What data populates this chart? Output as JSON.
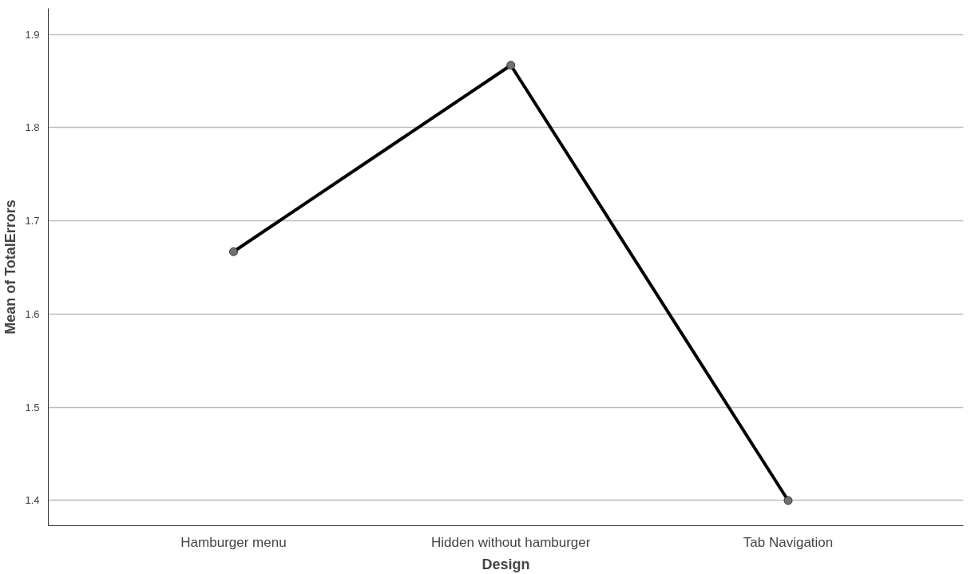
{
  "chart_data": {
    "type": "line",
    "xlabel": "Design",
    "ylabel": "Mean of TotalErrors",
    "categories": [
      "Hamburger menu",
      "Hidden without hamburger",
      "Tab Navigation"
    ],
    "series": [
      {
        "color": "#000000",
        "values": [
          1.667,
          1.867,
          1.4
        ]
      }
    ],
    "ylim": [
      1.373,
      1.928
    ],
    "yticks": [
      1.4,
      1.5,
      1.6,
      1.7,
      1.8,
      1.9
    ],
    "grid": "y",
    "marker": "circle",
    "line_style": "solid"
  }
}
